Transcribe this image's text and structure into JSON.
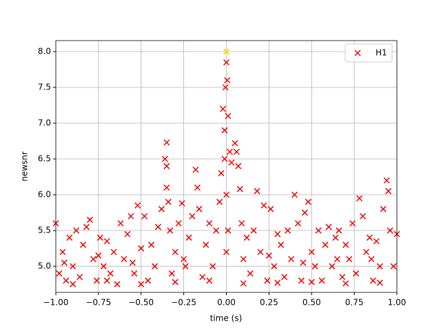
{
  "chart_data": {
    "type": "scatter",
    "xlabel": "time (s)",
    "ylabel": "newsnr",
    "xlim": [
      -1,
      1
    ],
    "ylim": [
      4.635,
      8.154
    ],
    "grid": true,
    "legend": "upper right",
    "xticks": [
      {
        "value": -1,
        "label": "−1.00"
      },
      {
        "value": -0.75,
        "label": "−0.75"
      },
      {
        "value": -0.5,
        "label": "−0.50"
      },
      {
        "value": -0.25,
        "label": "−0.25"
      },
      {
        "value": 0,
        "label": "0.00"
      },
      {
        "value": 0.25,
        "label": "0.25"
      },
      {
        "value": 0.5,
        "label": "0.50"
      },
      {
        "value": 0.75,
        "label": "0.75"
      },
      {
        "value": 1,
        "label": "1.00"
      }
    ],
    "yticks": [
      {
        "value": 5,
        "label": "5.0"
      },
      {
        "value": 5.5,
        "label": "5.5"
      },
      {
        "value": 6,
        "label": "6.0"
      },
      {
        "value": 6.5,
        "label": "6.5"
      },
      {
        "value": 7,
        "label": "7.0"
      },
      {
        "value": 7.5,
        "label": "7.5"
      },
      {
        "value": 8,
        "label": "8.0"
      }
    ],
    "series": [
      {
        "name": "H1",
        "color": "#ee0000",
        "x": [
          -1.0,
          -0.98,
          -0.96,
          -0.94,
          -0.92,
          -0.9,
          -0.88,
          -0.86,
          -0.84,
          -0.82,
          -0.8,
          -0.78,
          -0.76,
          -0.74,
          -0.72,
          -0.7,
          -0.68,
          -0.66,
          -0.64,
          -0.62,
          -0.6,
          -0.58,
          -0.56,
          -0.54,
          -0.52,
          -0.5,
          -0.48,
          -0.46,
          -0.44,
          -0.42,
          -0.4,
          -0.38,
          -0.36,
          -0.35,
          -0.35,
          -0.35,
          -0.34,
          -0.33,
          -0.32,
          -0.3,
          -0.28,
          -0.26,
          -0.24,
          -0.22,
          -0.2,
          -0.18,
          -0.17,
          -0.16,
          -0.14,
          -0.12,
          -0.1,
          -0.08,
          -0.06,
          -0.04,
          -0.03,
          -0.02,
          -0.01,
          -0.005,
          0.0,
          0.005,
          0.01,
          0.02,
          0.03,
          0.05,
          0.06,
          0.07,
          0.08,
          0.09,
          0.1,
          0.12,
          0.14,
          0.16,
          0.18,
          0.2,
          0.22,
          0.24,
          0.26,
          0.28,
          0.3,
          0.32,
          0.34,
          0.36,
          0.38,
          0.4,
          0.42,
          0.44,
          0.46,
          0.48,
          0.5,
          0.52,
          0.54,
          0.56,
          0.58,
          0.6,
          0.62,
          0.64,
          0.66,
          0.68,
          0.7,
          0.72,
          0.74,
          0.76,
          0.78,
          0.8,
          0.82,
          0.84,
          0.86,
          0.88,
          0.9,
          0.92,
          0.94,
          0.95,
          0.96,
          0.98,
          1.0,
          -0.9,
          -0.7,
          -0.5,
          -0.3,
          -0.1,
          0.1,
          0.3,
          0.5,
          0.7,
          0.9,
          -0.95,
          -0.75,
          -0.55,
          -0.25,
          0.0,
          0.25,
          0.45,
          0.65,
          0.85,
          0.0,
          -0.01,
          0.01
        ],
        "values": [
          5.6,
          4.9,
          5.2,
          4.8,
          5.4,
          5.0,
          5.5,
          4.85,
          5.3,
          5.55,
          5.65,
          5.1,
          4.8,
          5.4,
          5.0,
          5.35,
          4.9,
          5.2,
          4.75,
          5.6,
          5.1,
          5.45,
          5.7,
          4.9,
          5.85,
          5.25,
          5.7,
          4.8,
          5.3,
          5.0,
          5.55,
          5.8,
          6.5,
          6.73,
          6.4,
          6.1,
          5.9,
          5.5,
          4.9,
          5.2,
          5.6,
          5.88,
          5.0,
          5.4,
          5.7,
          6.35,
          6.1,
          5.8,
          4.85,
          5.3,
          5.6,
          5.0,
          5.5,
          5.9,
          6.3,
          7.2,
          6.9,
          7.5,
          7.85,
          7.6,
          7.1,
          6.6,
          6.45,
          6.72,
          6.6,
          6.4,
          6.08,
          5.6,
          5.1,
          5.4,
          4.9,
          5.5,
          6.05,
          5.2,
          5.85,
          4.8,
          5.8,
          5.0,
          5.45,
          5.3,
          4.85,
          5.5,
          5.1,
          6.0,
          5.6,
          4.8,
          5.75,
          5.9,
          5.2,
          5.0,
          5.5,
          4.8,
          5.3,
          5.55,
          5.0,
          5.4,
          5.5,
          4.85,
          5.3,
          5.1,
          5.6,
          4.9,
          5.95,
          5.7,
          5.2,
          5.4,
          4.8,
          5.35,
          5.0,
          5.8,
          6.2,
          6.05,
          5.5,
          5.0,
          5.45,
          4.75,
          4.8,
          4.75,
          4.78,
          4.8,
          4.76,
          4.77,
          4.78,
          4.76,
          4.77,
          5.05,
          5.15,
          5.05,
          5.1,
          5.2,
          5.15,
          5.05,
          5.1,
          5.1,
          6.0,
          6.5,
          5.5
        ]
      }
    ],
    "highlight": {
      "x": 0,
      "y": 8.0,
      "color": "#ffd700"
    }
  }
}
